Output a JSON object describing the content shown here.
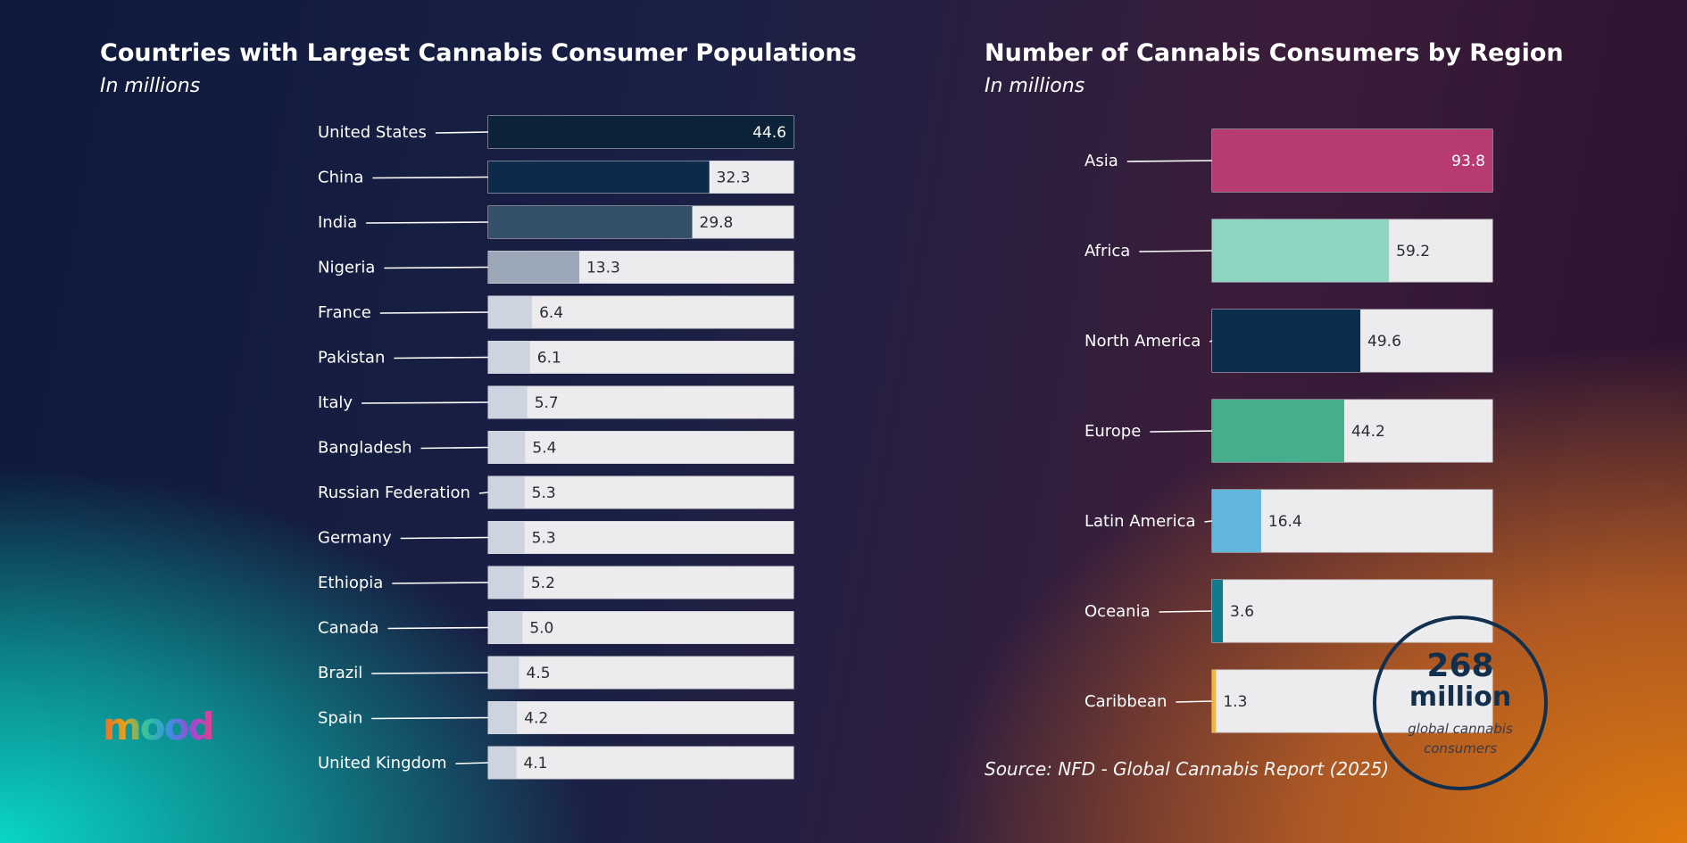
{
  "chart_data": [
    {
      "type": "bar",
      "orientation": "horizontal",
      "title": "Countries with Largest Cannabis Consumer Populations",
      "subtitle": "In millions",
      "categories": [
        "United States",
        "China",
        "India",
        "Nigeria",
        "France",
        "Pakistan",
        "Italy",
        "Bangladesh",
        "Russian Federation",
        "Germany",
        "Ethiopia",
        "Canada",
        "Brazil",
        "Spain",
        "United Kingdom"
      ],
      "values": [
        44.6,
        32.3,
        29.8,
        13.3,
        6.4,
        6.1,
        5.7,
        5.4,
        5.3,
        5.3,
        5.2,
        5.0,
        4.5,
        4.2,
        4.1
      ],
      "value_labels": [
        "44.6",
        "32.3",
        "29.8",
        "13.3",
        "6.4",
        "6.1",
        "5.7",
        "5.4",
        "5.3",
        "5.3",
        "5.2",
        "5.0",
        "4.5",
        "4.2",
        "4.1"
      ],
      "xlim": [
        0,
        44.6
      ],
      "colors": [
        "#0b2238",
        "#0d2a4a",
        "#34506a",
        "#9aa8b8",
        "#cdd4e0",
        "#cdd4e0",
        "#cdd4e0",
        "#cdd4e0",
        "#cdd4e0",
        "#cdd4e0",
        "#cdd4e0",
        "#cdd4e0",
        "#cdd4e0",
        "#cdd4e0",
        "#cdd4e0"
      ],
      "track_color": "#ececee"
    },
    {
      "type": "bar",
      "orientation": "horizontal",
      "title": "Number of Cannabis Consumers by Region",
      "subtitle": "In millions",
      "categories": [
        "Asia",
        "Africa",
        "North America",
        "Europe",
        "Latin America",
        "Oceania",
        "Caribbean"
      ],
      "values": [
        93.8,
        59.2,
        49.6,
        44.2,
        16.4,
        3.6,
        1.3
      ],
      "value_labels": [
        "93.8",
        "59.2",
        "49.6",
        "44.2",
        "16.4",
        "3.6",
        "1.3"
      ],
      "xlim": [
        0,
        93.8
      ],
      "colors": [
        "#b83a72",
        "#8ed6c2",
        "#0b2d4e",
        "#46ae8c",
        "#62b6dc",
        "#137a8c",
        "#f0b63a"
      ],
      "track_color": "#ececee"
    }
  ],
  "source": "Source: NFD - Global Cannabis Report (2025)",
  "badge": {
    "number": "268",
    "unit": "million",
    "description_line1": "global cannabis",
    "description_line2": "consumers"
  },
  "logo_text": "mood"
}
